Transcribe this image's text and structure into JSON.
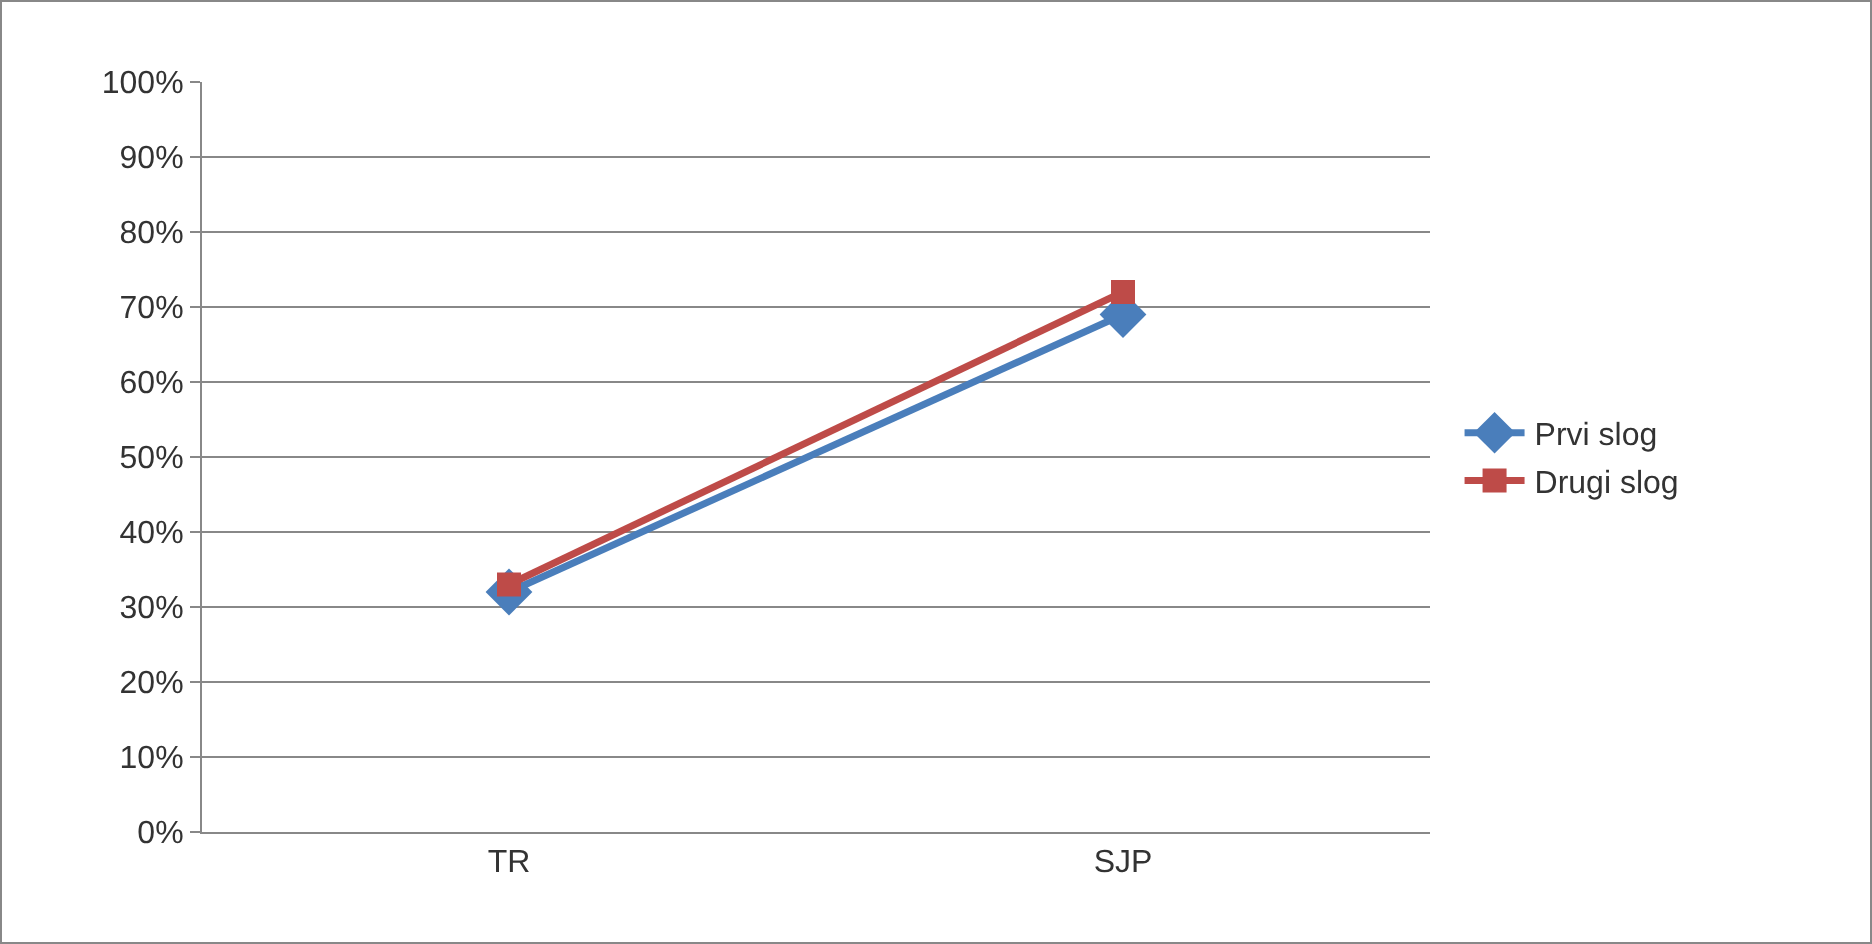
{
  "chart_data": {
    "type": "line",
    "categories": [
      "TR",
      "SJP"
    ],
    "series": [
      {
        "name": "Prvi slog",
        "color": "#4a7ebb",
        "values": [
          32,
          69
        ],
        "marker": "diamond"
      },
      {
        "name": "Drugi slog",
        "color": "#be4b48",
        "values": [
          33,
          72
        ],
        "marker": "square"
      }
    ],
    "ylim": [
      0,
      100
    ],
    "yticks": [
      {
        "value": 0,
        "label": "0%"
      },
      {
        "value": 10,
        "label": "10%"
      },
      {
        "value": 20,
        "label": "20%"
      },
      {
        "value": 30,
        "label": "30%"
      },
      {
        "value": 40,
        "label": "40%"
      },
      {
        "value": 50,
        "label": "50%"
      },
      {
        "value": 60,
        "label": "60%"
      },
      {
        "value": 70,
        "label": "70%"
      },
      {
        "value": 80,
        "label": "80%"
      },
      {
        "value": 90,
        "label": "90%"
      },
      {
        "value": 100,
        "label": "100%"
      }
    ],
    "grid": "y",
    "legend": "right",
    "line_style": "solid"
  }
}
